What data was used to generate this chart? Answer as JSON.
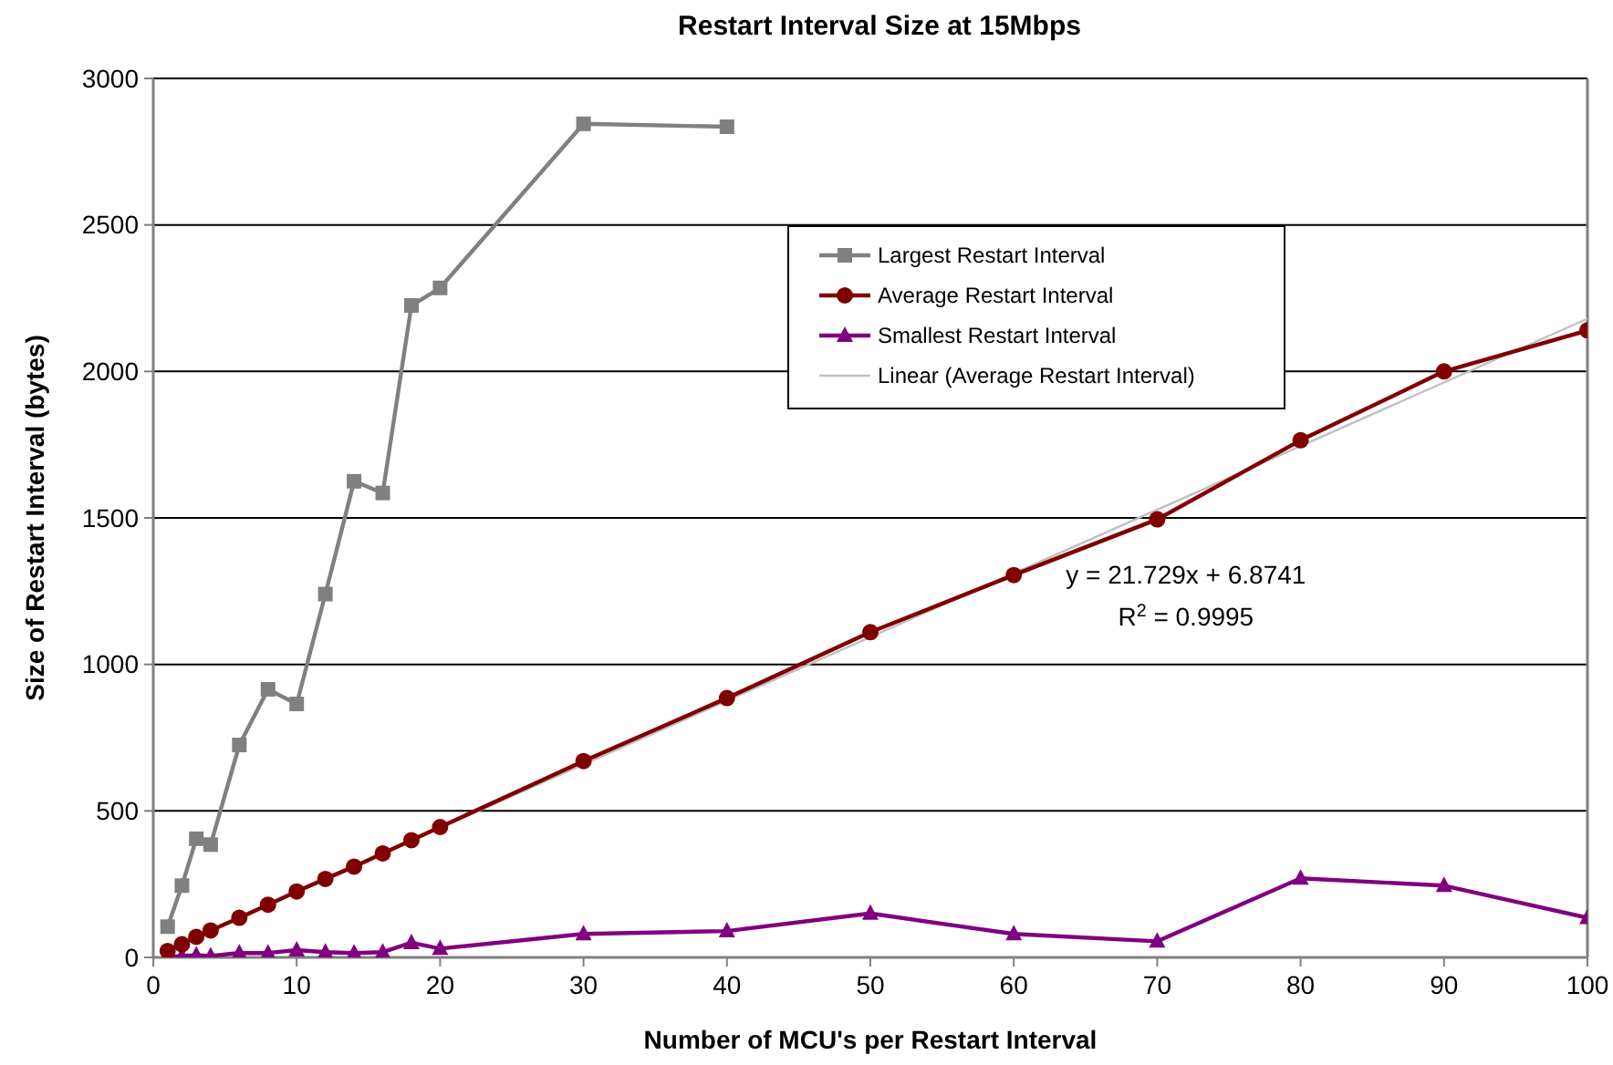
{
  "chart_data": {
    "type": "line",
    "title": "Restart Interval Size at 15Mbps",
    "xlabel": "Number of MCU's per Restart Interval",
    "ylabel": "Size of Restart Interval (bytes)",
    "xlim": [
      0,
      100
    ],
    "xticks": [
      0,
      10,
      20,
      30,
      40,
      50,
      60,
      70,
      80,
      90,
      100
    ],
    "ylim": [
      0,
      3000
    ],
    "yticks": [
      0,
      500,
      1000,
      1500,
      2000,
      2500,
      3000
    ],
    "grid": "y",
    "legend": "top right",
    "annotations": [
      "y = 21.729x + 6.8741",
      "R$^{2}$ = 0.9995"
    ],
    "series": [
      {
        "name": "Largest Restart Interval",
        "color": "#808080",
        "marker": "square",
        "x": [
          1,
          2,
          3,
          4,
          6,
          8,
          10,
          12,
          14,
          16,
          18,
          20,
          30,
          40
        ],
        "values": [
          105,
          245,
          405,
          385,
          725,
          915,
          865,
          1240,
          1625,
          1585,
          2225,
          2285,
          2845,
          2835
        ]
      },
      {
        "name": "Average Restart Interval",
        "color": "#800000",
        "marker": "circle",
        "x": [
          1,
          2,
          3,
          4,
          6,
          8,
          10,
          12,
          14,
          16,
          18,
          20,
          30,
          40,
          50,
          60,
          70,
          80,
          90,
          100
        ],
        "values": [
          22,
          45,
          70,
          92,
          135,
          180,
          225,
          268,
          310,
          355,
          400,
          445,
          670,
          885,
          1110,
          1305,
          1495,
          1765,
          2000,
          2140
        ]
      },
      {
        "name": "Smallest Restart Interval",
        "color": "#800080",
        "marker": "triangle",
        "x": [
          1,
          2,
          3,
          4,
          6,
          8,
          10,
          12,
          14,
          16,
          18,
          20,
          30,
          40,
          50,
          60,
          70,
          80,
          90,
          100
        ],
        "values": [
          2,
          5,
          8,
          5,
          15,
          15,
          25,
          18,
          15,
          18,
          50,
          30,
          80,
          90,
          150,
          80,
          55,
          270,
          245,
          135
        ]
      },
      {
        "name": "Linear (Average Restart Interval)",
        "color": "#c0c0c0",
        "marker": "none",
        "x": [
          1,
          100
        ],
        "values": [
          28.6,
          2179.8
        ]
      }
    ]
  }
}
